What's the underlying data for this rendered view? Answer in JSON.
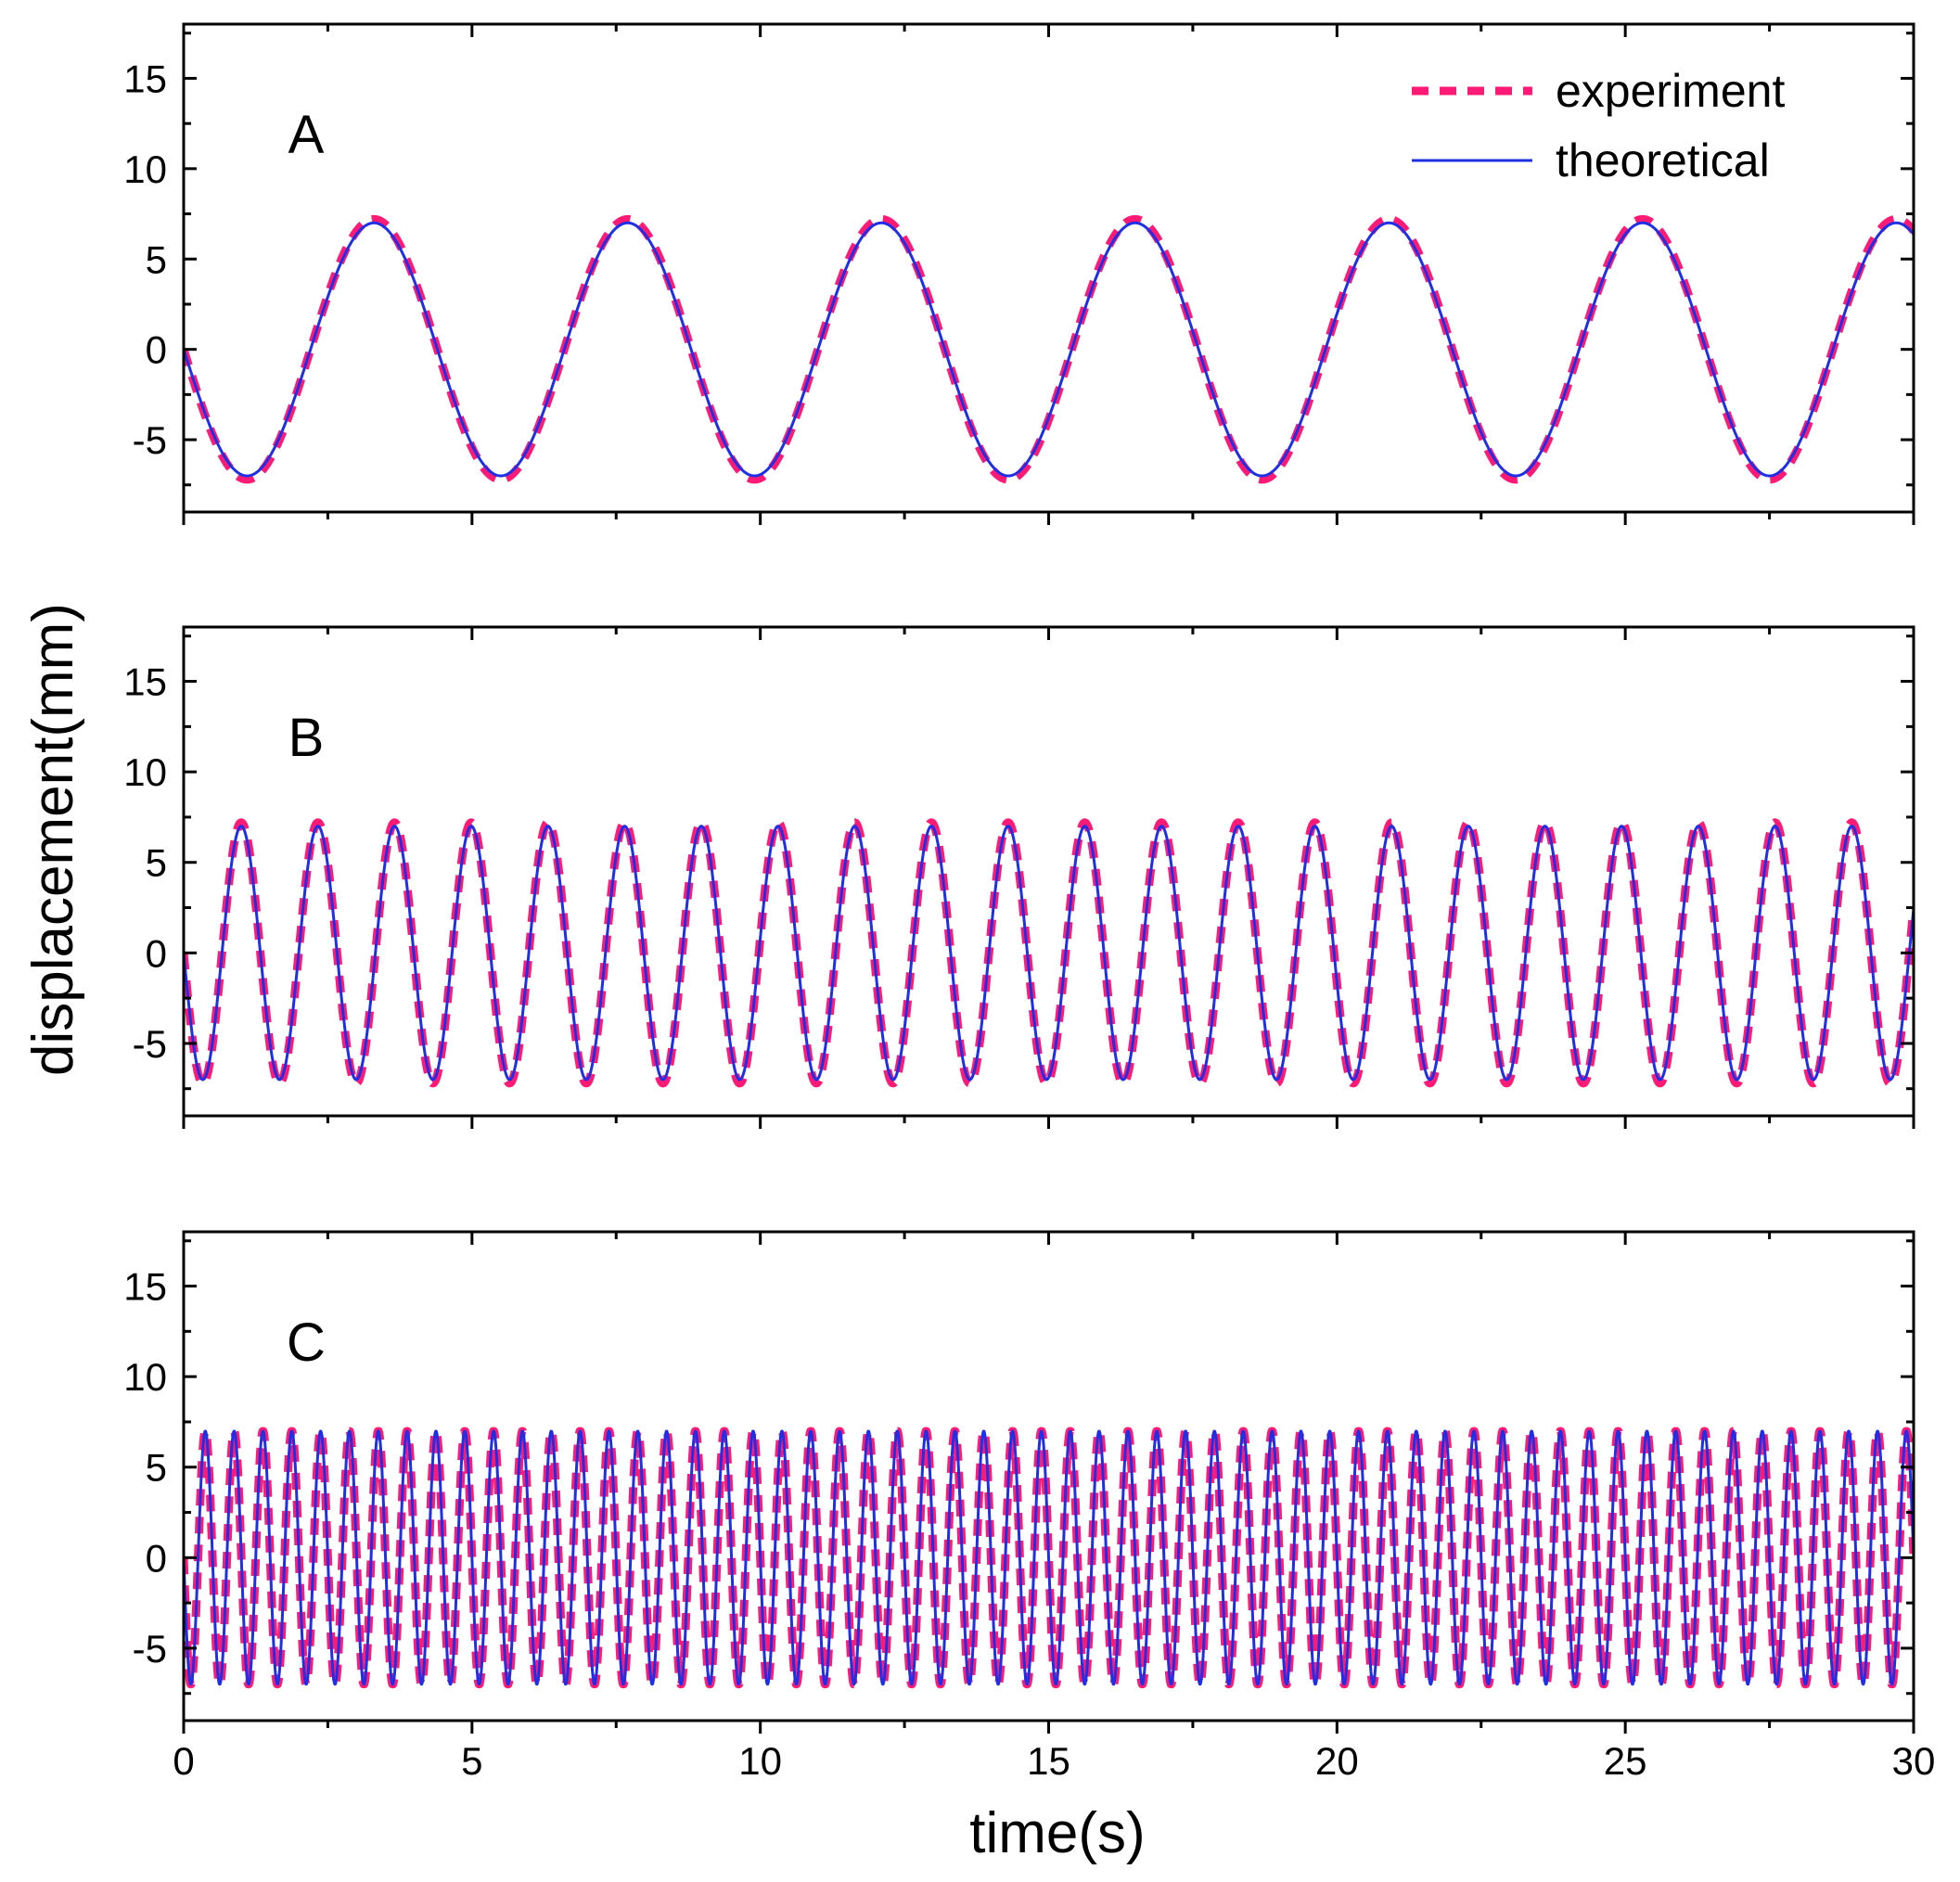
{
  "chart_data": {
    "type": "line",
    "xlabel": "time(s)",
    "ylabel": "displacement(mm)",
    "xlim": [
      0,
      30
    ],
    "ylim": [
      -9,
      18
    ],
    "x_ticks": [
      "0",
      "5",
      "10",
      "15",
      "20",
      "25",
      "30"
    ],
    "y_ticks": [
      "-5",
      "0",
      "5",
      "10",
      "15"
    ],
    "grid": false,
    "legend_position": "top-right",
    "legend": [
      {
        "label": "experiment",
        "color": "#ff1a75",
        "style": "dashed"
      },
      {
        "label": "theoretical",
        "color": "#1f2fe6",
        "style": "solid"
      }
    ],
    "panels": [
      {
        "label": "A",
        "series": [
          {
            "name": "experiment",
            "amplitude": 7.2,
            "period": 4.4,
            "phase_shift": 0.0
          },
          {
            "name": "theoretical",
            "amplitude": 7.0,
            "period": 4.4,
            "phase_shift": 0.0
          }
        ]
      },
      {
        "label": "B",
        "series": [
          {
            "name": "experiment",
            "amplitude": 7.2,
            "period": 1.33,
            "phase_shift": 0.0
          },
          {
            "name": "theoretical",
            "amplitude": 7.0,
            "period": 1.33,
            "phase_shift": 0.0
          }
        ]
      },
      {
        "label": "C",
        "series": [
          {
            "name": "experiment",
            "amplitude": 7.0,
            "period": 0.5,
            "phase_shift": 0.0
          },
          {
            "name": "theoretical",
            "amplitude": 7.0,
            "period": 0.5,
            "phase_shift": 0.0
          }
        ]
      }
    ]
  }
}
